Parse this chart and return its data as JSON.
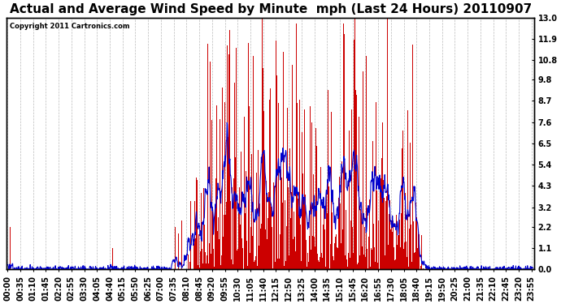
{
  "title": "Actual and Average Wind Speed by Minute  mph (Last 24 Hours) 20110907",
  "copyright_text": "Copyright 2011 Cartronics.com",
  "yticks": [
    0.0,
    1.1,
    2.2,
    3.2,
    4.3,
    5.4,
    6.5,
    7.6,
    8.7,
    9.8,
    10.8,
    11.9,
    13.0
  ],
  "ymax": 13.0,
  "ymin": 0.0,
  "bar_color": "#cc0000",
  "line_color": "#0000cc",
  "background_color": "#ffffff",
  "grid_color": "#bbbbbb",
  "title_fontsize": 11,
  "tick_fontsize": 7,
  "n_minutes": 1440,
  "x_tick_interval": 35,
  "x_tick_labels": [
    "00:00",
    "00:35",
    "01:10",
    "01:45",
    "02:20",
    "02:55",
    "03:30",
    "04:05",
    "04:40",
    "05:15",
    "05:50",
    "06:25",
    "07:00",
    "07:35",
    "08:10",
    "08:45",
    "09:20",
    "09:55",
    "10:30",
    "11:05",
    "11:40",
    "12:15",
    "12:50",
    "13:25",
    "14:00",
    "14:35",
    "15:10",
    "15:45",
    "16:20",
    "16:55",
    "17:30",
    "18:05",
    "18:40",
    "19:15",
    "19:50",
    "20:25",
    "21:00",
    "21:35",
    "22:10",
    "22:45",
    "23:20",
    "23:55"
  ]
}
